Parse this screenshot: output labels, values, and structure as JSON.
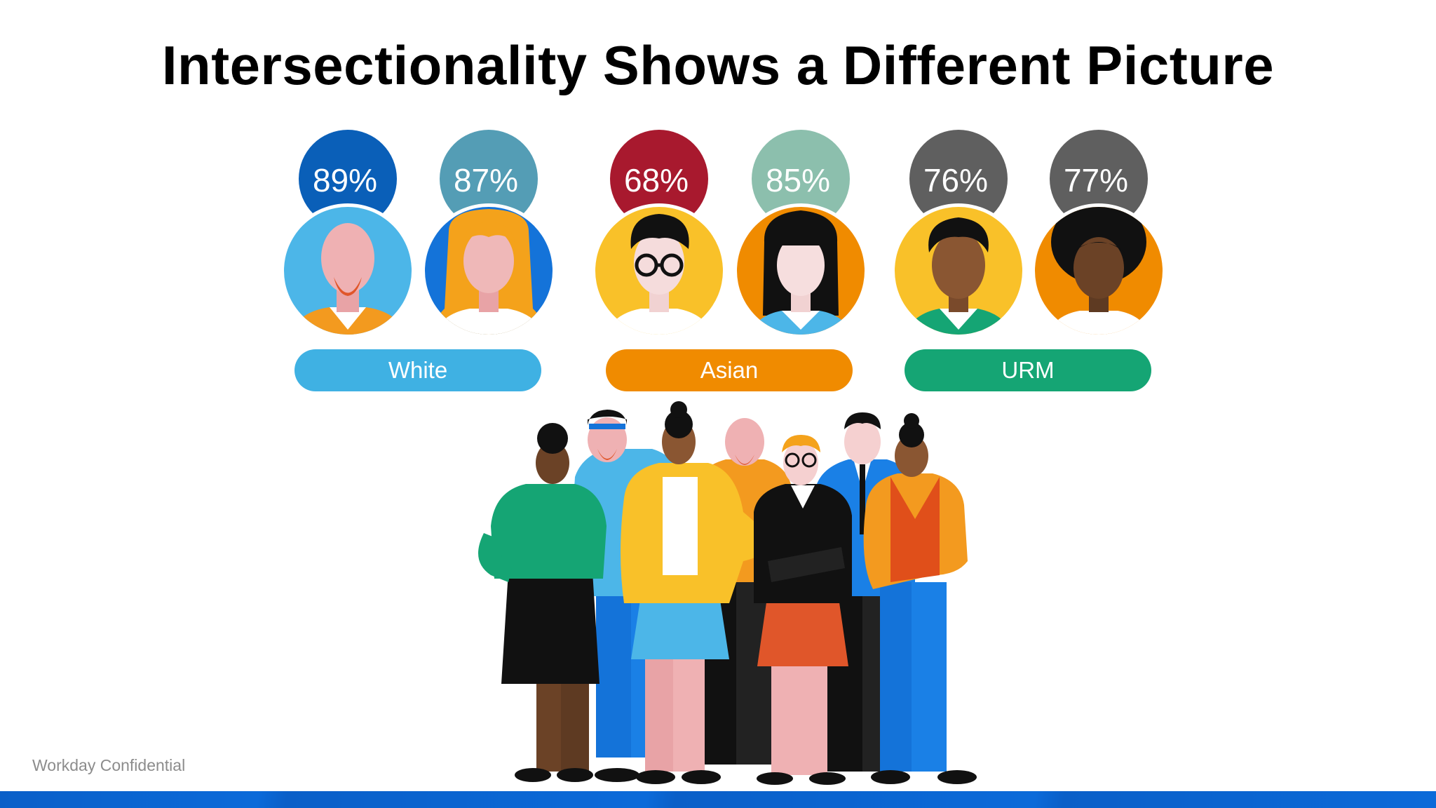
{
  "title": "Intersectionality Shows a Different Picture",
  "groups": [
    {
      "label": "White",
      "color": "#3fb1e3",
      "people": [
        {
          "name": "white-man",
          "value": "89%",
          "badge_color": "#0a5fb8"
        },
        {
          "name": "white-woman",
          "value": "87%",
          "badge_color": "#549db5"
        }
      ]
    },
    {
      "label": "Asian",
      "color": "#f08b00",
      "people": [
        {
          "name": "asian-man",
          "value": "68%",
          "badge_color": "#a8192e"
        },
        {
          "name": "asian-woman",
          "value": "85%",
          "badge_color": "#8cbfad"
        }
      ]
    },
    {
      "label": "URM",
      "color": "#15a574",
      "people": [
        {
          "name": "urm-man",
          "value": "76%",
          "badge_color": "#5f5f5f"
        },
        {
          "name": "urm-woman",
          "value": "77%",
          "badge_color": "#5f5f5f"
        }
      ]
    }
  ],
  "footer": "Workday Confidential",
  "icons": [
    "avatar-white-man-icon",
    "avatar-white-woman-icon",
    "avatar-asian-man-icon",
    "avatar-asian-woman-icon",
    "avatar-urm-man-icon",
    "avatar-urm-woman-icon",
    "group-of-people-illustration"
  ]
}
